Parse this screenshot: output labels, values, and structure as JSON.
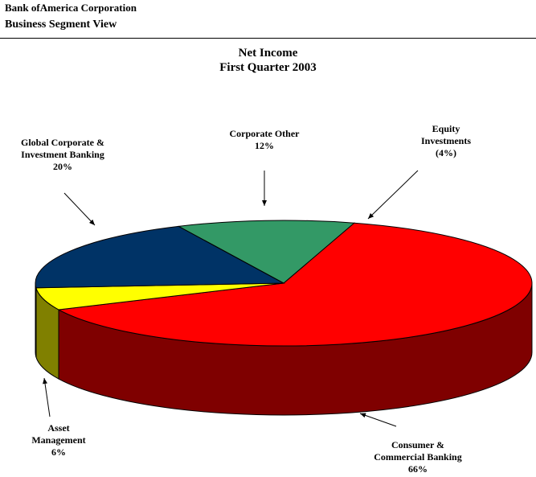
{
  "header": {
    "company": "Bank ofAmerica Corporation",
    "view": "Business Segment View"
  },
  "chart_data": {
    "type": "pie",
    "title": "Net Income",
    "subtitle": "First Quarter 2003",
    "slices": [
      {
        "label_lines": [
          "Consumer &",
          "Commercial Banking"
        ],
        "value_text": "66%",
        "value": 66,
        "color": "#ff0000",
        "side_color": "#7f0000"
      },
      {
        "label_lines": [
          "Asset",
          "Management"
        ],
        "value_text": "6%",
        "value": 6,
        "color": "#ffff00",
        "side_color": "#808000"
      },
      {
        "label_lines": [
          "Global Corporate &",
          "Investment Banking"
        ],
        "value_text": "20%",
        "value": 20,
        "color": "#003366",
        "side_color": "#001a33"
      },
      {
        "label_lines": [
          "Corporate Other"
        ],
        "value_text": "12%",
        "value": 12,
        "color": "#339966",
        "side_color": "#1a4d33"
      },
      {
        "label_lines": [
          "Equity",
          "Investments"
        ],
        "value_text": "(4%)",
        "value": -4,
        "color": null,
        "side_color": null
      }
    ]
  }
}
